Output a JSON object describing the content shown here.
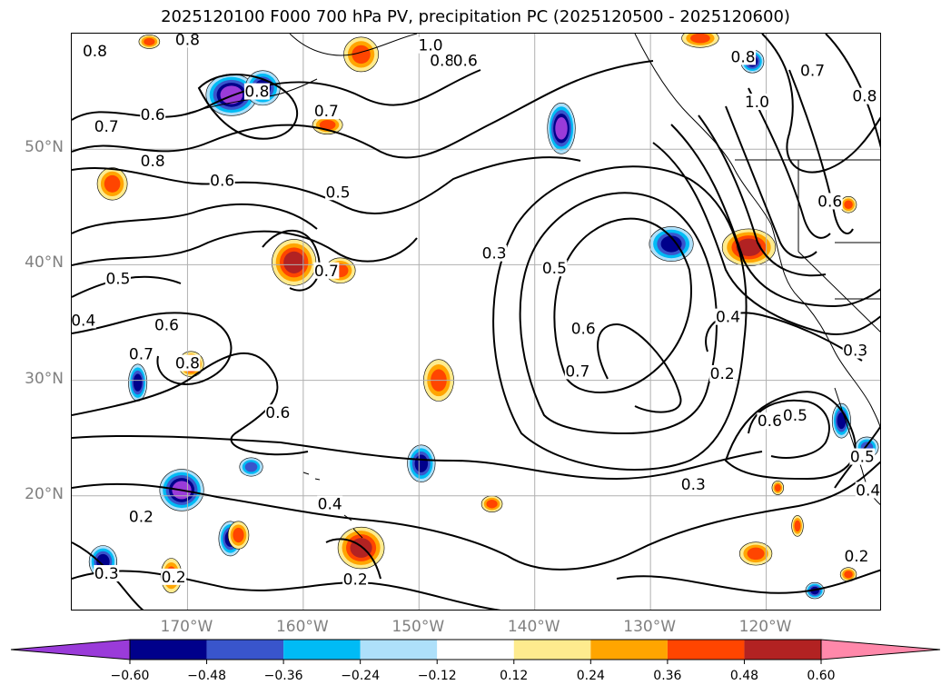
{
  "title": "2025120100 F000 700 hPa PV, precipitation PC (2025120500 - 2025120600)",
  "map": {
    "projection": "plate-carree",
    "lon_range": [
      -180,
      -110
    ],
    "lat_range": [
      10,
      60
    ],
    "grid": true,
    "lat_labels": [
      {
        "lat": 50,
        "text": "50°N"
      },
      {
        "lat": 40,
        "text": "40°N"
      },
      {
        "lat": 30,
        "text": "30°N"
      },
      {
        "lat": 20,
        "text": "20°N"
      }
    ],
    "lon_labels": [
      {
        "lon": -170,
        "text": "170°W"
      },
      {
        "lon": -160,
        "text": "160°W"
      },
      {
        "lon": -150,
        "text": "150°W"
      },
      {
        "lon": -140,
        "text": "140°W"
      },
      {
        "lon": -130,
        "text": "130°W"
      },
      {
        "lon": -120,
        "text": "120°W"
      }
    ],
    "contour_labels": [
      {
        "text": "0.8",
        "lon": -178,
        "lat": 58.5
      },
      {
        "text": "0.8",
        "lon": -170,
        "lat": 59.5
      },
      {
        "text": "1.0",
        "lon": -149,
        "lat": 59
      },
      {
        "text": "0.8",
        "lon": -148,
        "lat": 57.7
      },
      {
        "text": "0.6",
        "lon": -146,
        "lat": 57.7
      },
      {
        "text": "0.8",
        "lon": -164,
        "lat": 55
      },
      {
        "text": "0.7",
        "lon": -158,
        "lat": 53.3
      },
      {
        "text": "0.7",
        "lon": -177,
        "lat": 52
      },
      {
        "text": "0.6",
        "lon": -173,
        "lat": 53
      },
      {
        "text": "0.8",
        "lon": -173,
        "lat": 49
      },
      {
        "text": "0.6",
        "lon": -167,
        "lat": 47.3
      },
      {
        "text": "0.5",
        "lon": -157,
        "lat": 46.3
      },
      {
        "text": "0.5",
        "lon": -176,
        "lat": 38.8
      },
      {
        "text": "0.4",
        "lon": -179,
        "lat": 35.2
      },
      {
        "text": "0.6",
        "lon": -171.8,
        "lat": 34.8
      },
      {
        "text": "0.7",
        "lon": -174,
        "lat": 32.3
      },
      {
        "text": "0.8",
        "lon": -170,
        "lat": 31.5
      },
      {
        "text": "0.7",
        "lon": -158,
        "lat": 39.5
      },
      {
        "text": "0.3",
        "lon": -143.5,
        "lat": 41
      },
      {
        "text": "0.5",
        "lon": -138.3,
        "lat": 39.7
      },
      {
        "text": "0.6",
        "lon": -135.8,
        "lat": 34.5
      },
      {
        "text": "0.7",
        "lon": -136.3,
        "lat": 30.8
      },
      {
        "text": "0.8",
        "lon": -111.5,
        "lat": 54.6
      },
      {
        "text": "1.0",
        "lon": -120.8,
        "lat": 54.1
      },
      {
        "text": "0.8",
        "lon": -122,
        "lat": 58
      },
      {
        "text": "0.7",
        "lon": -116,
        "lat": 56.8
      },
      {
        "text": "0.6",
        "lon": -114.5,
        "lat": 45.5
      },
      {
        "text": "0.4",
        "lon": -123.3,
        "lat": 35.5
      },
      {
        "text": "0.3",
        "lon": -112.3,
        "lat": 32.6
      },
      {
        "text": "0.2",
        "lon": -123.8,
        "lat": 30.6
      },
      {
        "text": "0.6",
        "lon": -119.7,
        "lat": 26.5
      },
      {
        "text": "0.5",
        "lon": -117.5,
        "lat": 27
      },
      {
        "text": "0.5",
        "lon": -111.7,
        "lat": 23.4
      },
      {
        "text": "0.4",
        "lon": -111.2,
        "lat": 20.5
      },
      {
        "text": "0.3",
        "lon": -126.3,
        "lat": 21
      },
      {
        "text": "0.4",
        "lon": -157.7,
        "lat": 19.3
      },
      {
        "text": "0.6",
        "lon": -162.2,
        "lat": 27.2
      },
      {
        "text": "0.2",
        "lon": -174,
        "lat": 18.2
      },
      {
        "text": "0.2",
        "lon": -171.2,
        "lat": 13
      },
      {
        "text": "0.3",
        "lon": -177,
        "lat": 13.3
      },
      {
        "text": "0.2",
        "lon": -155.5,
        "lat": 12.8
      },
      {
        "text": "0.2",
        "lon": -112.2,
        "lat": 14.8
      }
    ],
    "precip_features": [
      {
        "lon": -166.2,
        "lat": 54.7,
        "rx": 2.2,
        "ry": 1.8,
        "level": -0.6
      },
      {
        "lon": -163.5,
        "lat": 55.3,
        "rx": 1.5,
        "ry": 1.5,
        "level": -0.48
      },
      {
        "lon": -137.7,
        "lat": 51.8,
        "rx": 1.2,
        "ry": 2.2,
        "level": -0.6
      },
      {
        "lon": -121.2,
        "lat": 57.6,
        "rx": 1.0,
        "ry": 1.0,
        "level": -0.48
      },
      {
        "lon": -174.3,
        "lat": 29.8,
        "rx": 0.8,
        "ry": 1.6,
        "level": -0.48
      },
      {
        "lon": -170.5,
        "lat": 20.5,
        "rx": 1.9,
        "ry": 1.8,
        "level": -0.6
      },
      {
        "lon": -164.5,
        "lat": 22.5,
        "rx": 1.0,
        "ry": 0.8,
        "level": -0.36
      },
      {
        "lon": -149.8,
        "lat": 22.8,
        "rx": 1.2,
        "ry": 1.6,
        "level": -0.48
      },
      {
        "lon": -128.2,
        "lat": 41.8,
        "rx": 1.9,
        "ry": 1.5,
        "level": -0.48
      },
      {
        "lon": -113.5,
        "lat": 26.5,
        "rx": 0.8,
        "ry": 1.5,
        "level": -0.48
      },
      {
        "lon": -111.3,
        "lat": 24.2,
        "rx": 1.0,
        "ry": 0.9,
        "level": -0.36
      },
      {
        "lon": -166.3,
        "lat": 16.3,
        "rx": 1.0,
        "ry": 1.5,
        "level": -0.48
      },
      {
        "lon": -177.3,
        "lat": 14.3,
        "rx": 1.2,
        "ry": 1.4,
        "level": -0.48
      },
      {
        "lon": -115.8,
        "lat": 11.8,
        "rx": 0.8,
        "ry": 0.7,
        "level": -0.48
      },
      {
        "lon": -160.8,
        "lat": 40.2,
        "rx": 1.9,
        "ry": 2.0,
        "level": 0.48
      },
      {
        "lon": -156.8,
        "lat": 39.5,
        "rx": 1.3,
        "ry": 1.1,
        "level": 0.36
      },
      {
        "lon": -121.5,
        "lat": 41.5,
        "rx": 2.3,
        "ry": 1.6,
        "level": 0.48
      },
      {
        "lon": -155.0,
        "lat": 15.5,
        "rx": 2.0,
        "ry": 1.8,
        "level": 0.48
      },
      {
        "lon": -169.7,
        "lat": 31.4,
        "rx": 1.1,
        "ry": 1.1,
        "level": 0.48
      },
      {
        "lon": -148.3,
        "lat": 30.0,
        "rx": 1.3,
        "ry": 1.8,
        "level": 0.36
      },
      {
        "lon": -176.5,
        "lat": 47.0,
        "rx": 1.3,
        "ry": 1.4,
        "level": 0.36
      },
      {
        "lon": -157.9,
        "lat": 52.1,
        "rx": 1.3,
        "ry": 0.8,
        "level": 0.36
      },
      {
        "lon": -155.0,
        "lat": 58.2,
        "rx": 1.5,
        "ry": 1.5,
        "level": 0.36
      },
      {
        "lon": -125.7,
        "lat": 59.6,
        "rx": 1.6,
        "ry": 0.8,
        "level": 0.36
      },
      {
        "lon": -173.3,
        "lat": 59.3,
        "rx": 0.9,
        "ry": 0.6,
        "level": 0.36
      },
      {
        "lon": -165.6,
        "lat": 16.6,
        "rx": 0.9,
        "ry": 1.2,
        "level": 0.36
      },
      {
        "lon": -171.4,
        "lat": 13.1,
        "rx": 0.9,
        "ry": 1.5,
        "level": 0.36
      },
      {
        "lon": -143.7,
        "lat": 19.3,
        "rx": 0.9,
        "ry": 0.7,
        "level": 0.36
      },
      {
        "lon": -120.9,
        "lat": 15.0,
        "rx": 1.4,
        "ry": 1.0,
        "level": 0.36
      },
      {
        "lon": -117.3,
        "lat": 17.4,
        "rx": 0.5,
        "ry": 0.9,
        "level": 0.36
      },
      {
        "lon": -112.9,
        "lat": 13.2,
        "rx": 0.7,
        "ry": 0.6,
        "level": 0.36
      },
      {
        "lon": -112.9,
        "lat": 45.2,
        "rx": 0.7,
        "ry": 0.7,
        "level": 0.36
      },
      {
        "lon": -119.0,
        "lat": 20.7,
        "rx": 0.5,
        "ry": 0.6,
        "level": 0.36
      }
    ]
  },
  "colorbar": {
    "ticks": [
      "−0.60",
      "−0.48",
      "−0.36",
      "−0.24",
      "−0.12",
      "0.12",
      "0.24",
      "0.36",
      "0.48",
      "0.60"
    ],
    "colors": [
      "#9a3bd9",
      "#00008b",
      "#3955cc",
      "#00bbf5",
      "#aee0fa",
      "#ffffff",
      "#feeb8e",
      "#ffa500",
      "#ff4500",
      "#b22222",
      "#ff88aa"
    ]
  }
}
